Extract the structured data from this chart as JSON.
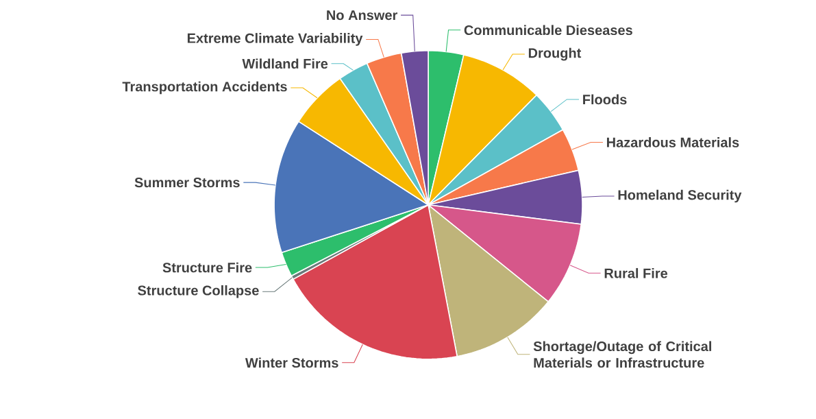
{
  "chart_data": {
    "type": "pie",
    "categories": [
      "Communicable Dieseases",
      "Drought",
      "Floods",
      "Hazardous Materials",
      "Homeland Security",
      "Rural Fire",
      "Shortage/Outage of Critical Materials or Infrastructure",
      "Winter Storms",
      "Structure Collapse",
      "Structure Fire",
      "Summer Storms",
      "Transportation Accidents",
      "Wildland Fire",
      "Extreme Climate Variability",
      "No Answer"
    ],
    "values": [
      3.7,
      8.7,
      4.5,
      4.5,
      5.6,
      8.8,
      11.2,
      20.0,
      0.4,
      2.6,
      14.1,
      6.2,
      3.2,
      3.7,
      2.8
    ],
    "colors": [
      "#2dbe6c",
      "#f7b801",
      "#5bc0c8",
      "#f7794a",
      "#6b4c9a",
      "#d6578a",
      "#bfb47a",
      "#d94452",
      "#6b7b7b",
      "#2dbe6c",
      "#4a74b8",
      "#f7b801",
      "#5bc0c8",
      "#f7794a",
      "#6b4c9a"
    ]
  }
}
